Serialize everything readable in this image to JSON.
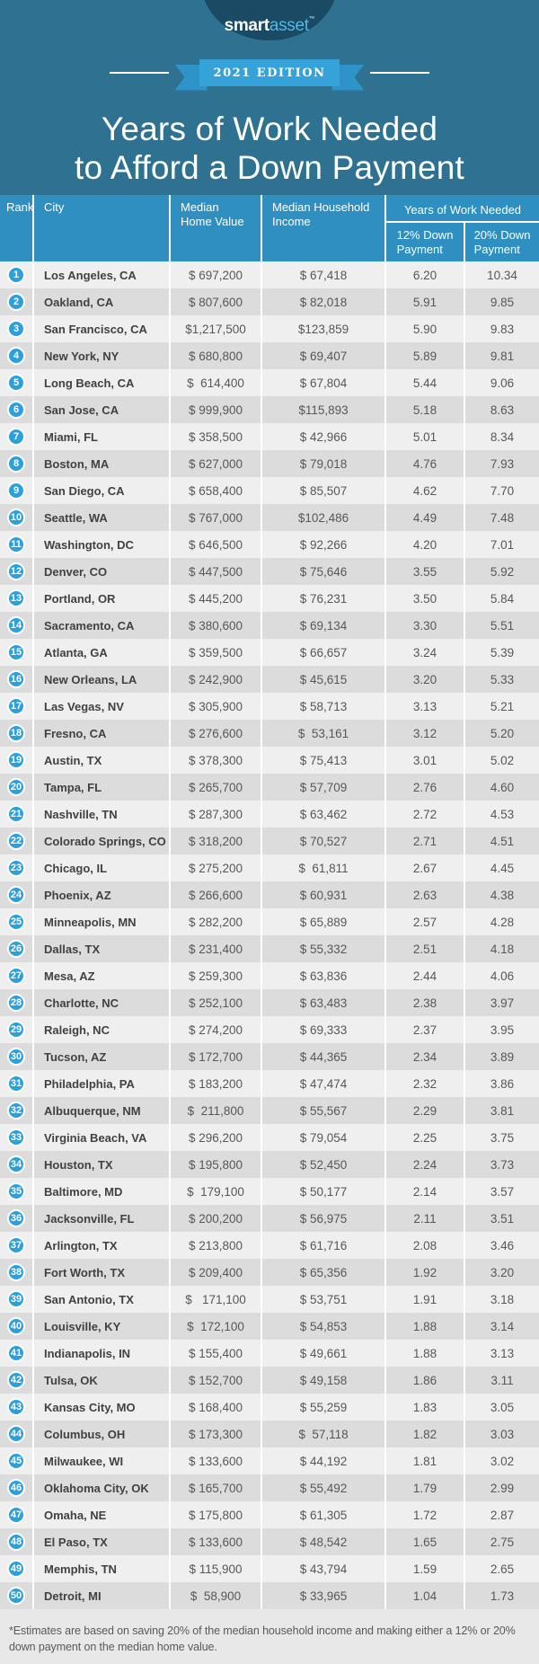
{
  "brand": {
    "smart": "smart",
    "asset": "asset",
    "tm": "™"
  },
  "edition": "2021 EDITION",
  "title": {
    "line1": "Years of Work Needed",
    "line2": "to Afford a Down Payment"
  },
  "table": {
    "headers": {
      "rank": "Rank",
      "city": "City",
      "home_value": "Median\nHome Value",
      "income": "Median Household\nIncome",
      "years_group": "Years of Work Needed",
      "down12": "12% Down\nPayment",
      "down20": "20% Down\nPayment"
    },
    "rows": [
      {
        "rank": "1",
        "city": "Los Angeles, CA",
        "home": "$ 697,200",
        "income": "$ 67,418",
        "d12": "6.20",
        "d20": "10.34"
      },
      {
        "rank": "2",
        "city": "Oakland, CA",
        "home": "$ 807,600",
        "income": "$ 82,018",
        "d12": "5.91",
        "d20": "9.85"
      },
      {
        "rank": "3",
        "city": "San Francisco, CA",
        "home": "$1,217,500",
        "income": "$123,859",
        "d12": "5.90",
        "d20": "9.83"
      },
      {
        "rank": "4",
        "city": "New York, NY",
        "home": "$ 680,800",
        "income": "$ 69,407",
        "d12": "5.89",
        "d20": "9.81"
      },
      {
        "rank": "5",
        "city": "Long Beach, CA",
        "home": "$  614,400",
        "income": "$ 67,804",
        "d12": "5.44",
        "d20": "9.06"
      },
      {
        "rank": "6",
        "city": "San Jose, CA",
        "home": "$ 999,900",
        "income": "$115,893",
        "d12": "5.18",
        "d20": "8.63"
      },
      {
        "rank": "7",
        "city": "Miami, FL",
        "home": "$ 358,500",
        "income": "$ 42,966",
        "d12": "5.01",
        "d20": "8.34"
      },
      {
        "rank": "8",
        "city": "Boston, MA",
        "home": "$ 627,000",
        "income": "$ 79,018",
        "d12": "4.76",
        "d20": "7.93"
      },
      {
        "rank": "9",
        "city": "San Diego, CA",
        "home": "$ 658,400",
        "income": "$ 85,507",
        "d12": "4.62",
        "d20": "7.70"
      },
      {
        "rank": "10",
        "city": "Seattle, WA",
        "home": "$ 767,000",
        "income": "$102,486",
        "d12": "4.49",
        "d20": "7.48"
      },
      {
        "rank": "11",
        "city": "Washington, DC",
        "home": "$ 646,500",
        "income": "$ 92,266",
        "d12": "4.20",
        "d20": "7.01"
      },
      {
        "rank": "12",
        "city": "Denver, CO",
        "home": "$ 447,500",
        "income": "$ 75,646",
        "d12": "3.55",
        "d20": "5.92"
      },
      {
        "rank": "13",
        "city": "Portland, OR",
        "home": "$ 445,200",
        "income": "$ 76,231",
        "d12": "3.50",
        "d20": "5.84"
      },
      {
        "rank": "14",
        "city": "Sacramento, CA",
        "home": "$ 380,600",
        "income": "$ 69,134",
        "d12": "3.30",
        "d20": "5.51"
      },
      {
        "rank": "15",
        "city": "Atlanta, GA",
        "home": "$ 359,500",
        "income": "$ 66,657",
        "d12": "3.24",
        "d20": "5.39"
      },
      {
        "rank": "16",
        "city": "New Orleans, LA",
        "home": "$ 242,900",
        "income": "$ 45,615",
        "d12": "3.20",
        "d20": "5.33"
      },
      {
        "rank": "17",
        "city": "Las Vegas, NV",
        "home": "$ 305,900",
        "income": "$ 58,713",
        "d12": "3.13",
        "d20": "5.21"
      },
      {
        "rank": "18",
        "city": "Fresno, CA",
        "home": "$ 276,600",
        "income": "$  53,161",
        "d12": "3.12",
        "d20": "5.20"
      },
      {
        "rank": "19",
        "city": "Austin, TX",
        "home": "$ 378,300",
        "income": "$ 75,413",
        "d12": "3.01",
        "d20": "5.02"
      },
      {
        "rank": "20",
        "city": "Tampa, FL",
        "home": "$ 265,700",
        "income": "$ 57,709",
        "d12": "2.76",
        "d20": "4.60"
      },
      {
        "rank": "21",
        "city": "Nashville, TN",
        "home": "$ 287,300",
        "income": "$ 63,462",
        "d12": "2.72",
        "d20": "4.53"
      },
      {
        "rank": "22",
        "city": "Colorado Springs, CO",
        "home": "$ 318,200",
        "income": "$ 70,527",
        "d12": "2.71",
        "d20": "4.51"
      },
      {
        "rank": "23",
        "city": "Chicago, IL",
        "home": "$ 275,200",
        "income": "$  61,811",
        "d12": "2.67",
        "d20": "4.45"
      },
      {
        "rank": "24",
        "city": "Phoenix, AZ",
        "home": "$ 266,600",
        "income": "$ 60,931",
        "d12": "2.63",
        "d20": "4.38"
      },
      {
        "rank": "25",
        "city": "Minneapolis, MN",
        "home": "$ 282,200",
        "income": "$ 65,889",
        "d12": "2.57",
        "d20": "4.28"
      },
      {
        "rank": "26",
        "city": "Dallas, TX",
        "home": "$ 231,400",
        "income": "$ 55,332",
        "d12": "2.51",
        "d20": "4.18"
      },
      {
        "rank": "27",
        "city": "Mesa, AZ",
        "home": "$ 259,300",
        "income": "$ 63,836",
        "d12": "2.44",
        "d20": "4.06"
      },
      {
        "rank": "28",
        "city": "Charlotte, NC",
        "home": "$ 252,100",
        "income": "$ 63,483",
        "d12": "2.38",
        "d20": "3.97"
      },
      {
        "rank": "29",
        "city": "Raleigh, NC",
        "home": "$ 274,200",
        "income": "$ 69,333",
        "d12": "2.37",
        "d20": "3.95"
      },
      {
        "rank": "30",
        "city": "Tucson, AZ",
        "home": "$ 172,700",
        "income": "$ 44,365",
        "d12": "2.34",
        "d20": "3.89"
      },
      {
        "rank": "31",
        "city": "Philadelphia, PA",
        "home": "$ 183,200",
        "income": "$ 47,474",
        "d12": "2.32",
        "d20": "3.86"
      },
      {
        "rank": "32",
        "city": "Albuquerque, NM",
        "home": "$  211,800",
        "income": "$ 55,567",
        "d12": "2.29",
        "d20": "3.81"
      },
      {
        "rank": "33",
        "city": "Virginia Beach, VA",
        "home": "$ 296,200",
        "income": "$ 79,054",
        "d12": "2.25",
        "d20": "3.75"
      },
      {
        "rank": "34",
        "city": "Houston, TX",
        "home": "$ 195,800",
        "income": "$ 52,450",
        "d12": "2.24",
        "d20": "3.73"
      },
      {
        "rank": "35",
        "city": "Baltimore, MD",
        "home": "$  179,100",
        "income": "$ 50,177",
        "d12": "2.14",
        "d20": "3.57"
      },
      {
        "rank": "36",
        "city": "Jacksonville, FL",
        "home": "$ 200,200",
        "income": "$ 56,975",
        "d12": "2.11",
        "d20": "3.51"
      },
      {
        "rank": "37",
        "city": "Arlington, TX",
        "home": "$ 213,800",
        "income": "$ 61,716",
        "d12": "2.08",
        "d20": "3.46"
      },
      {
        "rank": "38",
        "city": "Fort Worth, TX",
        "home": "$ 209,400",
        "income": "$ 65,356",
        "d12": "1.92",
        "d20": "3.20"
      },
      {
        "rank": "39",
        "city": "San Antonio, TX",
        "home": "$   171,100",
        "income": "$ 53,751",
        "d12": "1.91",
        "d20": "3.18"
      },
      {
        "rank": "40",
        "city": "Louisville, KY",
        "home": "$  172,100",
        "income": "$ 54,853",
        "d12": "1.88",
        "d20": "3.14"
      },
      {
        "rank": "41",
        "city": "Indianapolis, IN",
        "home": "$ 155,400",
        "income": "$ 49,661",
        "d12": "1.88",
        "d20": "3.13"
      },
      {
        "rank": "42",
        "city": "Tulsa, OK",
        "home": "$ 152,700",
        "income": "$ 49,158",
        "d12": "1.86",
        "d20": "3.11"
      },
      {
        "rank": "43",
        "city": "Kansas City, MO",
        "home": "$ 168,400",
        "income": "$ 55,259",
        "d12": "1.83",
        "d20": "3.05"
      },
      {
        "rank": "44",
        "city": "Columbus, OH",
        "home": "$ 173,300",
        "income": "$  57,118",
        "d12": "1.82",
        "d20": "3.03"
      },
      {
        "rank": "45",
        "city": "Milwaukee, WI",
        "home": "$ 133,600",
        "income": "$ 44,192",
        "d12": "1.81",
        "d20": "3.02"
      },
      {
        "rank": "46",
        "city": "Oklahoma City, OK",
        "home": "$ 165,700",
        "income": "$ 55,492",
        "d12": "1.79",
        "d20": "2.99"
      },
      {
        "rank": "47",
        "city": "Omaha, NE",
        "home": "$ 175,800",
        "income": "$ 61,305",
        "d12": "1.72",
        "d20": "2.87"
      },
      {
        "rank": "48",
        "city": "El Paso, TX",
        "home": "$ 133,600",
        "income": "$ 48,542",
        "d12": "1.65",
        "d20": "2.75"
      },
      {
        "rank": "49",
        "city": "Memphis, TN",
        "home": "$ 115,900",
        "income": "$ 43,794",
        "d12": "1.59",
        "d20": "2.65"
      },
      {
        "rank": "50",
        "city": "Detroit, MI",
        "home": "$  58,900",
        "income": "$ 33,965",
        "d12": "1.04",
        "d20": "1.73"
      }
    ]
  },
  "footnote": "*Estimates are based on saving 20% of the median household income and making either a 12% or 20% down payment on the median home value.",
  "colors": {
    "page_background": "#2e7190",
    "logo_circle": "#1a4a64",
    "logo_asset_blue": "#56b7e2",
    "ribbon_blue": "#36a2da",
    "ribbon_fold": "#2e93c8",
    "table_header_blue": "#2e8fc0",
    "rank_badge_blue": "#2aa1dc",
    "row_light": "#efefef",
    "row_dark": "#dcdcdc",
    "footer_background": "#e8e8e8",
    "city_text": "#414042",
    "value_text": "#565759"
  },
  "chart_data": {
    "type": "table",
    "title": "Years of Work Needed to Afford a Down Payment",
    "subtitle": "2021 EDITION",
    "columns": [
      "Rank",
      "City",
      "Median Home Value",
      "Median Household Income",
      "Years of Work Needed — 12% Down Payment",
      "Years of Work Needed — 20% Down Payment"
    ],
    "cities": [
      "Los Angeles, CA",
      "Oakland, CA",
      "San Francisco, CA",
      "New York, NY",
      "Long Beach, CA",
      "San Jose, CA",
      "Miami, FL",
      "Boston, MA",
      "San Diego, CA",
      "Seattle, WA",
      "Washington, DC",
      "Denver, CO",
      "Portland, OR",
      "Sacramento, CA",
      "Atlanta, GA",
      "New Orleans, LA",
      "Las Vegas, NV",
      "Fresno, CA",
      "Austin, TX",
      "Tampa, FL",
      "Nashville, TN",
      "Colorado Springs, CO",
      "Chicago, IL",
      "Phoenix, AZ",
      "Minneapolis, MN",
      "Dallas, TX",
      "Mesa, AZ",
      "Charlotte, NC",
      "Raleigh, NC",
      "Tucson, AZ",
      "Philadelphia, PA",
      "Albuquerque, NM",
      "Virginia Beach, VA",
      "Houston, TX",
      "Baltimore, MD",
      "Jacksonville, FL",
      "Arlington, TX",
      "Fort Worth, TX",
      "San Antonio, TX",
      "Louisville, KY",
      "Indianapolis, IN",
      "Tulsa, OK",
      "Kansas City, MO",
      "Columbus, OH",
      "Milwaukee, WI",
      "Oklahoma City, OK",
      "Omaha, NE",
      "El Paso, TX",
      "Memphis, TN",
      "Detroit, MI"
    ],
    "median_home_value": [
      697200,
      807600,
      1217500,
      680800,
      614400,
      999900,
      358500,
      627000,
      658400,
      767000,
      646500,
      447500,
      445200,
      380600,
      359500,
      242900,
      305900,
      276600,
      378300,
      265700,
      287300,
      318200,
      275200,
      266600,
      282200,
      231400,
      259300,
      252100,
      274200,
      172700,
      183200,
      211800,
      296200,
      195800,
      179100,
      200200,
      213800,
      209400,
      171100,
      172100,
      155400,
      152700,
      168400,
      173300,
      133600,
      165700,
      175800,
      133600,
      115900,
      58900
    ],
    "median_household_income": [
      67418,
      82018,
      123859,
      69407,
      67804,
      115893,
      42966,
      79018,
      85507,
      102486,
      92266,
      75646,
      76231,
      69134,
      66657,
      45615,
      58713,
      53161,
      75413,
      57709,
      63462,
      70527,
      61811,
      60931,
      65889,
      55332,
      63836,
      63483,
      69333,
      44365,
      47474,
      55567,
      79054,
      52450,
      50177,
      56975,
      61716,
      65356,
      53751,
      54853,
      49661,
      49158,
      55259,
      57118,
      44192,
      55492,
      61305,
      48542,
      43794,
      33965
    ],
    "years_12_down": [
      6.2,
      5.91,
      5.9,
      5.89,
      5.44,
      5.18,
      5.01,
      4.76,
      4.62,
      4.49,
      4.2,
      3.55,
      3.5,
      3.3,
      3.24,
      3.2,
      3.13,
      3.12,
      3.01,
      2.76,
      2.72,
      2.71,
      2.67,
      2.63,
      2.57,
      2.51,
      2.44,
      2.38,
      2.37,
      2.34,
      2.32,
      2.29,
      2.25,
      2.24,
      2.14,
      2.11,
      2.08,
      1.92,
      1.91,
      1.88,
      1.88,
      1.86,
      1.83,
      1.82,
      1.81,
      1.79,
      1.72,
      1.65,
      1.59,
      1.04
    ],
    "years_20_down": [
      10.34,
      9.85,
      9.83,
      9.81,
      9.06,
      8.63,
      8.34,
      7.93,
      7.7,
      7.48,
      7.01,
      5.92,
      5.84,
      5.51,
      5.39,
      5.33,
      5.21,
      5.2,
      5.02,
      4.6,
      4.53,
      4.51,
      4.45,
      4.38,
      4.28,
      4.18,
      4.06,
      3.97,
      3.95,
      3.89,
      3.86,
      3.81,
      3.75,
      3.73,
      3.57,
      3.51,
      3.46,
      3.2,
      3.18,
      3.14,
      3.13,
      3.11,
      3.05,
      3.03,
      3.02,
      2.99,
      2.87,
      2.75,
      2.65,
      1.73
    ]
  }
}
